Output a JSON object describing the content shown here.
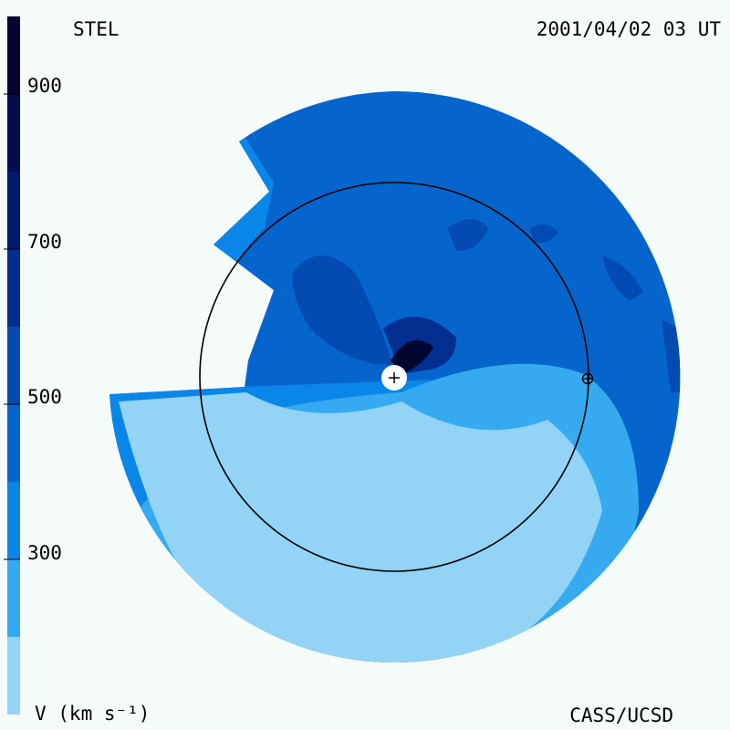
{
  "header": {
    "title": "STEL",
    "timestamp": "2001/04/02 03 UT"
  },
  "footer": {
    "colorbar_unit": "V (km s⁻¹)",
    "credit": "CASS/UCSD"
  },
  "colorbar": {
    "ticks": [
      "900",
      "700",
      "500",
      "300"
    ],
    "bands": [
      {
        "from": 100,
        "to": 200,
        "color": "#93d3f5"
      },
      {
        "from": 200,
        "to": 300,
        "color": "#36aaf0"
      },
      {
        "from": 300,
        "to": 400,
        "color": "#0a86e8"
      },
      {
        "from": 400,
        "to": 500,
        "color": "#0565cc"
      },
      {
        "from": 500,
        "to": 600,
        "color": "#044ab3"
      },
      {
        "from": 600,
        "to": 700,
        "color": "#022e90"
      },
      {
        "from": 700,
        "to": 800,
        "color": "#011a6e"
      },
      {
        "from": 800,
        "to": 900,
        "color": "#020e50"
      },
      {
        "from": 900,
        "to": 1000,
        "color": "#010730"
      }
    ]
  },
  "map": {
    "markers": {
      "sun": "+",
      "earth": "earth-symbol"
    }
  }
}
